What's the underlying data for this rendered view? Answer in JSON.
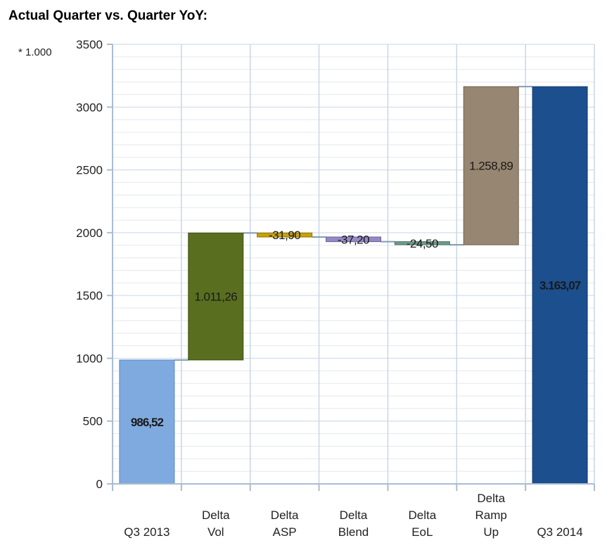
{
  "chart_data": {
    "type": "bar",
    "variant": "waterfall",
    "title": "Actual Quarter vs. Quarter YoY:",
    "axis_multiplier": "* 1.000",
    "xlabel": "",
    "ylabel": "",
    "ylim": [
      0,
      3500
    ],
    "y_ticks": [
      "0",
      "500",
      "1000",
      "1500",
      "2000",
      "2500",
      "3000",
      "3500"
    ],
    "grid": true,
    "legend": "none",
    "categories": [
      [
        "Q3 2013"
      ],
      [
        "Delta",
        "Vol"
      ],
      [
        "Delta",
        "ASP"
      ],
      [
        "Delta",
        "Blend"
      ],
      [
        "Delta",
        "EoL"
      ],
      [
        "Delta",
        "Ramp",
        "Up"
      ],
      [
        "Q3 2014"
      ]
    ],
    "bars": [
      {
        "kind": "total",
        "value": 986.52,
        "label": "986,52",
        "color": "#7faadf",
        "border": "#5a86c0",
        "label_bold": true
      },
      {
        "kind": "delta",
        "value": 1011.26,
        "label": "1.011,26",
        "color": "#5a6e1f",
        "border": "#3f4f12",
        "label_bold": false
      },
      {
        "kind": "delta",
        "value": -31.9,
        "label": "-31,90",
        "color": "#c9a200",
        "border": "#8d7300",
        "label_bold": false
      },
      {
        "kind": "delta",
        "value": -37.2,
        "label": "-37,20",
        "color": "#9589c4",
        "border": "#6b5fa0",
        "label_bold": false
      },
      {
        "kind": "delta",
        "value": -24.5,
        "label": "-24,50",
        "color": "#6e9a8a",
        "border": "#4c7464",
        "label_bold": false
      },
      {
        "kind": "delta",
        "value": 1258.89,
        "label": "1.258,89",
        "color": "#978671",
        "border": "#6e604f",
        "label_bold": false
      },
      {
        "kind": "total",
        "value": 3163.07,
        "label": "3.163,07",
        "color": "#1b4f8e",
        "border": "#123a6a",
        "label_bold": true
      }
    ]
  }
}
